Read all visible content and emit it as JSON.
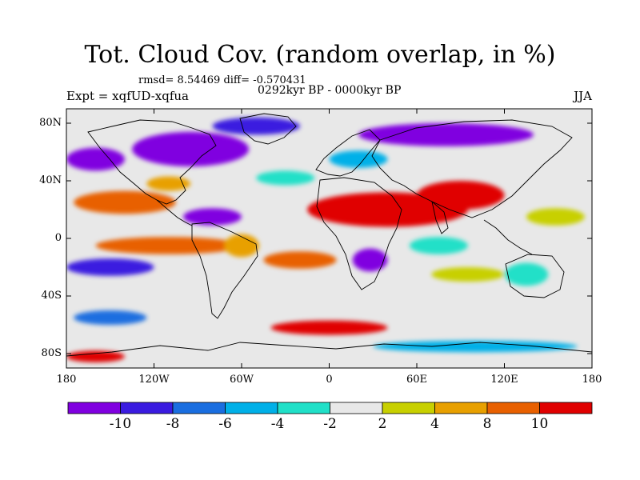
{
  "title": "Tot. Cloud Cov. (random overlap, in %)",
  "stats": "rmsd= 8.54469 diff= -0.570431",
  "period": "0292kyr BP - 0000kyr BP",
  "experiment": "Expt = xqfUD-xqfua",
  "season": "JJA",
  "map": {
    "projection": "cylindrical-equidistant",
    "lat_range": [
      -90,
      90
    ],
    "lon_range": [
      -180,
      180
    ],
    "lat_ticks": [
      {
        "value": 80,
        "label": "80N"
      },
      {
        "value": 40,
        "label": "40N"
      },
      {
        "value": 0,
        "label": "0"
      },
      {
        "value": -40,
        "label": "40S"
      },
      {
        "value": -80,
        "label": "80S"
      }
    ],
    "lon_ticks": [
      {
        "value": -180,
        "label": "180"
      },
      {
        "value": -120,
        "label": "120W"
      },
      {
        "value": -60,
        "label": "60W"
      },
      {
        "value": 0,
        "label": "0"
      },
      {
        "value": 60,
        "label": "60E"
      },
      {
        "value": 120,
        "label": "120E"
      },
      {
        "value": 180,
        "label": "180"
      }
    ],
    "background_color": "#e8e8e8",
    "coastline_color": "#000000"
  },
  "colorbar": {
    "boundaries": [
      "-10",
      "-8",
      "-6",
      "-4",
      "-2",
      "2",
      "4",
      "8",
      "10"
    ],
    "colors": [
      "#8000e0",
      "#3a1be0",
      "#1a6ee0",
      "#00b0e8",
      "#20e0c8",
      "#e8e8e8",
      "#c8d000",
      "#e8a000",
      "#e86000",
      "#e00000"
    ]
  },
  "anomaly_regions": [
    {
      "name": "north-atlantic-canada",
      "lon": -95,
      "lat": 62,
      "rx": 40,
      "ry": 12,
      "color": "#8000e0"
    },
    {
      "name": "north-pacific",
      "lon": -160,
      "lat": 55,
      "rx": 20,
      "ry": 8,
      "color": "#8000e0"
    },
    {
      "name": "siberia",
      "lon": 80,
      "lat": 72,
      "rx": 60,
      "ry": 8,
      "color": "#8000e0"
    },
    {
      "name": "arctic-greenland",
      "lon": -50,
      "lat": 78,
      "rx": 30,
      "ry": 6,
      "color": "#3a1be0"
    },
    {
      "name": "sahara-arabia",
      "lon": 40,
      "lat": 20,
      "rx": 55,
      "ry": 12,
      "color": "#e00000"
    },
    {
      "name": "india-asia",
      "lon": 90,
      "lat": 30,
      "rx": 30,
      "ry": 10,
      "color": "#e00000"
    },
    {
      "name": "eastern-pacific",
      "lon": -140,
      "lat": 25,
      "rx": 35,
      "ry": 8,
      "color": "#e86000"
    },
    {
      "name": "tropical-pacific-south",
      "lon": -110,
      "lat": -5,
      "rx": 50,
      "ry": 6,
      "color": "#e86000"
    },
    {
      "name": "south-pacific",
      "lon": -150,
      "lat": -20,
      "rx": 30,
      "ry": 6,
      "color": "#3a1be0"
    },
    {
      "name": "central-america",
      "lon": -80,
      "lat": 15,
      "rx": 20,
      "ry": 6,
      "color": "#8000e0"
    },
    {
      "name": "south-atlantic",
      "lon": -20,
      "lat": -15,
      "rx": 25,
      "ry": 6,
      "color": "#e86000"
    },
    {
      "name": "southern-africa",
      "lon": 28,
      "lat": -15,
      "rx": 12,
      "ry": 8,
      "color": "#8000e0"
    },
    {
      "name": "indian-ocean",
      "lon": 75,
      "lat": -5,
      "rx": 20,
      "ry": 6,
      "color": "#20e0c8"
    },
    {
      "name": "south-indian",
      "lon": 95,
      "lat": -25,
      "rx": 25,
      "ry": 5,
      "color": "#c8d000"
    },
    {
      "name": "west-pacific",
      "lon": 155,
      "lat": 15,
      "rx": 20,
      "ry": 6,
      "color": "#c8d000"
    },
    {
      "name": "southern-ocean-west",
      "lon": -150,
      "lat": -55,
      "rx": 25,
      "ry": 5,
      "color": "#1a6ee0"
    },
    {
      "name": "southern-ocean-atlantic",
      "lon": 0,
      "lat": -62,
      "rx": 40,
      "ry": 5,
      "color": "#e00000"
    },
    {
      "name": "antarctic-rim",
      "lon": 100,
      "lat": -75,
      "rx": 70,
      "ry": 4,
      "color": "#00b0e8"
    },
    {
      "name": "antarctic-south",
      "lon": -160,
      "lat": -82,
      "rx": 20,
      "ry": 4,
      "color": "#e00000"
    },
    {
      "name": "europe",
      "lon": 20,
      "lat": 55,
      "rx": 20,
      "ry": 6,
      "color": "#00b0e8"
    },
    {
      "name": "north-atlantic-mid",
      "lon": -30,
      "lat": 42,
      "rx": 20,
      "ry": 5,
      "color": "#20e0c8"
    },
    {
      "name": "us-west",
      "lon": -110,
      "lat": 38,
      "rx": 15,
      "ry": 5,
      "color": "#e8a000"
    },
    {
      "name": "amazon",
      "lon": -60,
      "lat": -5,
      "rx": 12,
      "ry": 8,
      "color": "#e8a000"
    },
    {
      "name": "australia",
      "lon": 135,
      "lat": -25,
      "rx": 15,
      "ry": 8,
      "color": "#20e0c8"
    }
  ]
}
